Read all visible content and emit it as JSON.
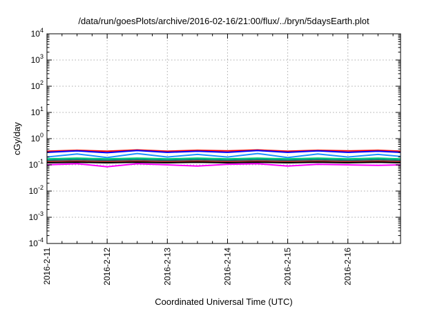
{
  "chart_data": {
    "type": "line",
    "title": "/data/run/goesPlots/archive/2016-02-16/21:00/flux/../bryn/5daysEarth.plot",
    "xlabel": "Coordinated Universal Time (UTC)",
    "ylabel": "cGy/day",
    "xlim": [
      "2016-02-11",
      "2016-02-16 21:00"
    ],
    "ylim": [
      0.0001,
      10000
    ],
    "yscale": "log",
    "grid": true,
    "x_ticks": [
      "2016-2-11",
      "2016-2-12",
      "2016-2-13",
      "2016-2-14",
      "2016-2-15",
      "2016-2-16"
    ],
    "y_ticks": [
      {
        "base": "10",
        "exp": "4"
      },
      {
        "base": "10",
        "exp": "3"
      },
      {
        "base": "10",
        "exp": "2"
      },
      {
        "base": "10",
        "exp": "1"
      },
      {
        "base": "10",
        "exp": "0"
      },
      {
        "base": "10",
        "exp": "-1"
      },
      {
        "base": "10",
        "exp": "-2"
      },
      {
        "base": "10",
        "exp": "-3"
      },
      {
        "base": "10",
        "exp": "-4"
      }
    ],
    "x_days": [
      0,
      0.5,
      1,
      1.5,
      2,
      2.5,
      3,
      3.5,
      4,
      4.5,
      5,
      5.5,
      5.875
    ],
    "series": [
      {
        "color": "#ff0000",
        "values": [
          0.33,
          0.36,
          0.33,
          0.37,
          0.33,
          0.36,
          0.34,
          0.37,
          0.33,
          0.36,
          0.34,
          0.36,
          0.33
        ]
      },
      {
        "color": "#0000ff",
        "values": [
          0.3,
          0.34,
          0.29,
          0.35,
          0.3,
          0.33,
          0.3,
          0.35,
          0.3,
          0.34,
          0.3,
          0.33,
          0.3
        ]
      },
      {
        "color": "#1e90ff",
        "values": [
          0.2,
          0.26,
          0.19,
          0.27,
          0.2,
          0.25,
          0.2,
          0.27,
          0.19,
          0.26,
          0.2,
          0.25,
          0.21
        ]
      },
      {
        "color": "#00c878",
        "values": [
          0.17,
          0.18,
          0.17,
          0.18,
          0.17,
          0.18,
          0.17,
          0.18,
          0.17,
          0.18,
          0.17,
          0.18,
          0.17
        ]
      },
      {
        "color": "#008080",
        "values": [
          0.15,
          0.16,
          0.15,
          0.16,
          0.15,
          0.16,
          0.15,
          0.16,
          0.15,
          0.16,
          0.15,
          0.16,
          0.15
        ]
      },
      {
        "color": "#a52a2a",
        "values": [
          0.135,
          0.14,
          0.135,
          0.14,
          0.135,
          0.14,
          0.135,
          0.14,
          0.135,
          0.14,
          0.135,
          0.14,
          0.135
        ]
      },
      {
        "color": "#000000",
        "values": [
          0.12,
          0.125,
          0.12,
          0.125,
          0.12,
          0.125,
          0.12,
          0.125,
          0.12,
          0.125,
          0.12,
          0.125,
          0.12
        ]
      },
      {
        "color": "#ff00ff",
        "values": [
          0.1,
          0.11,
          0.085,
          0.11,
          0.1,
          0.09,
          0.105,
          0.11,
          0.09,
          0.105,
          0.1,
          0.095,
          0.1
        ]
      }
    ]
  }
}
